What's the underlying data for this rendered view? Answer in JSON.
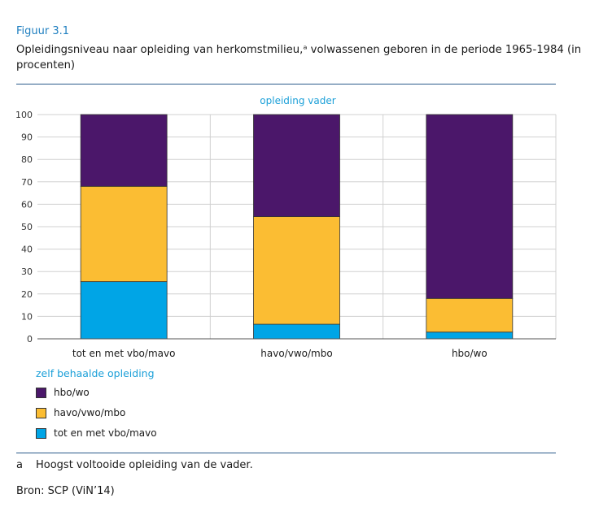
{
  "figure": {
    "label": "Figuur 3.1",
    "title": "Opleidingsniveau naar opleiding van herkomstmilieu,ᵃ volwassenen geboren in de periode 1965-1984 (in procenten)"
  },
  "chart_data": {
    "type": "bar",
    "stacked": true,
    "panel_title": "opleiding vader",
    "categories": [
      "tot en met vbo/mavo",
      "havo/vwo/mbo",
      "hbo/wo"
    ],
    "series": [
      {
        "name": "tot en met vbo/mavo",
        "color": "#00a5e6",
        "values": [
          25.5,
          6.5,
          3
        ]
      },
      {
        "name": "havo/vwo/mbo",
        "color": "#fbbd33",
        "values": [
          42.5,
          48,
          15
        ]
      },
      {
        "name": "hbo/wo",
        "color": "#4b176a",
        "values": [
          32,
          45.5,
          82
        ]
      }
    ],
    "ylim": [
      0,
      100
    ],
    "yticks": [
      0,
      10,
      20,
      30,
      40,
      50,
      60,
      70,
      80,
      90,
      100
    ],
    "grid": true,
    "legend_title": "zelf behaalde opleiding",
    "legend_placement": "bottom-left"
  },
  "legend": {
    "title": "zelf behaalde opleiding",
    "items": [
      {
        "label": "hbo/wo",
        "color": "#4b176a"
      },
      {
        "label": "havo/vwo/mbo",
        "color": "#fbbd33"
      },
      {
        "label": "tot en met vbo/mavo",
        "color": "#00a5e6"
      }
    ]
  },
  "footnote": {
    "letter": "a",
    "text": "Hoogst voltooide opleiding van de vader."
  },
  "source": "Bron: SCP (ViN’14)"
}
